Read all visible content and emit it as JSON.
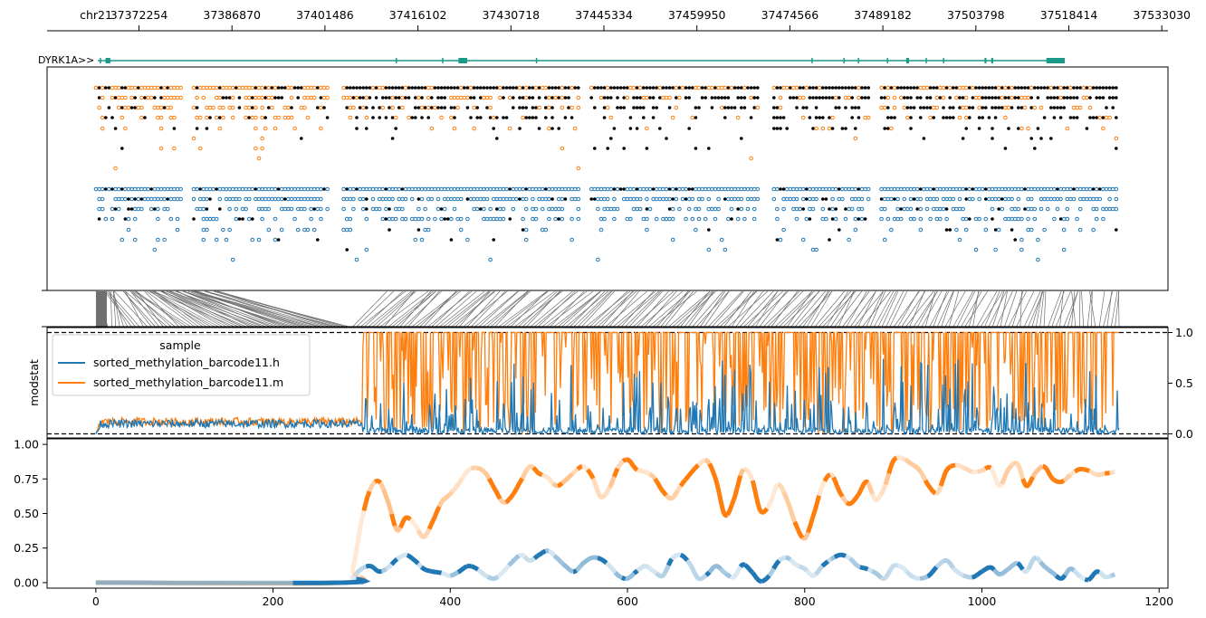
{
  "chart_data": [
    {
      "type": "line",
      "panel": "genomic coordinate ruler",
      "chrom_label": "chr21",
      "xticks": [
        "37372254",
        "37386870",
        "37401486",
        "37416102",
        "37430718",
        "37445334",
        "37459950",
        "37474566",
        "37489182",
        "37503798",
        "37518414",
        "37533030"
      ]
    },
    {
      "type": "line",
      "panel": "gene annotation",
      "gene_label": "DYRK1A>>",
      "color": "#1a9988",
      "exons_relative": [
        [
          0.002,
          0.003
        ],
        [
          0.008,
          0.013
        ],
        [
          0.308,
          0.309
        ],
        [
          0.356,
          0.357
        ],
        [
          0.373,
          0.382
        ],
        [
          0.453,
          0.454
        ],
        [
          0.738,
          0.739
        ],
        [
          0.771,
          0.772
        ],
        [
          0.786,
          0.787
        ],
        [
          0.816,
          0.817
        ],
        [
          0.836,
          0.839
        ],
        [
          0.856,
          0.857
        ],
        [
          0.874,
          0.875
        ],
        [
          0.917,
          0.919
        ],
        [
          0.924,
          0.926
        ],
        [
          0.981,
          1.0
        ]
      ]
    },
    {
      "type": "scatter",
      "panel": "per-read methylation calls",
      "colors": {
        "h": "#1f77b4",
        "m": "#ff7f0e",
        "unmodified": "#000000"
      }
    },
    {
      "type": "line",
      "panel": "genomic-to-index mapping",
      "color": "#707070"
    },
    {
      "type": "line",
      "panel": "modstat",
      "ylabel": "modstat",
      "yticks": [
        "0.0",
        "0.5",
        "1.0"
      ],
      "ylim": [
        0,
        1
      ],
      "reference_lines": [
        0,
        1
      ],
      "legend": {
        "title": "sample",
        "placement": "upper-left"
      },
      "series": [
        {
          "name": "sorted_methylation_barcode11.h",
          "color": "#1f77b4",
          "baseline": 0.1,
          "mean_after": 0.05
        },
        {
          "name": "sorted_methylation_barcode11.m",
          "color": "#ff7f0e",
          "baseline": 0.12,
          "mean_after": 0.8
        }
      ],
      "step_index": 300
    },
    {
      "type": "line",
      "panel": "smoothed methylation",
      "xlabel": "",
      "xticks": [
        "0",
        "200",
        "400",
        "600",
        "800",
        "1000",
        "1200"
      ],
      "xlim": [
        -55,
        1210
      ],
      "yticks": [
        "0.00",
        "0.25",
        "0.50",
        "0.75",
        "1.00"
      ],
      "ylim": [
        -0.04,
        1.04
      ],
      "series": [
        {
          "name": "sorted_methylation_barcode11.m",
          "color": "#ff7f0e",
          "x": [
            0,
            280,
            290,
            300,
            310,
            320,
            330,
            340,
            350,
            360,
            370,
            380,
            390,
            400,
            410,
            420,
            430,
            440,
            450,
            460,
            470,
            480,
            490,
            500,
            510,
            520,
            530,
            540,
            550,
            560,
            570,
            580,
            590,
            600,
            610,
            620,
            630,
            640,
            650,
            660,
            670,
            680,
            690,
            700,
            710,
            720,
            730,
            740,
            750,
            760,
            770,
            780,
            790,
            800,
            810,
            820,
            830,
            840,
            850,
            860,
            870,
            880,
            890,
            900,
            910,
            920,
            930,
            940,
            950,
            960,
            970,
            980,
            990,
            1000,
            1010,
            1020,
            1030,
            1040,
            1050,
            1060,
            1070,
            1080,
            1090,
            1100,
            1110,
            1120,
            1130,
            1140,
            1150
          ],
          "y": [
            0,
            0,
            0.1,
            0.45,
            0.68,
            0.73,
            0.58,
            0.38,
            0.47,
            0.42,
            0.33,
            0.44,
            0.58,
            0.64,
            0.72,
            0.81,
            0.83,
            0.79,
            0.68,
            0.58,
            0.63,
            0.74,
            0.84,
            0.79,
            0.76,
            0.7,
            0.74,
            0.8,
            0.84,
            0.77,
            0.62,
            0.69,
            0.84,
            0.89,
            0.82,
            0.8,
            0.76,
            0.66,
            0.61,
            0.7,
            0.78,
            0.85,
            0.88,
            0.74,
            0.49,
            0.6,
            0.81,
            0.76,
            0.52,
            0.56,
            0.71,
            0.6,
            0.42,
            0.32,
            0.49,
            0.7,
            0.78,
            0.65,
            0.57,
            0.63,
            0.73,
            0.6,
            0.69,
            0.88,
            0.9,
            0.86,
            0.81,
            0.7,
            0.65,
            0.81,
            0.85,
            0.83,
            0.8,
            0.81,
            0.83,
            0.7,
            0.82,
            0.86,
            0.7,
            0.79,
            0.84,
            0.75,
            0.73,
            0.78,
            0.82,
            0.81,
            0.78,
            0.79,
            0.8
          ]
        },
        {
          "name": "sorted_methylation_barcode11.h",
          "color": "#1f77b4",
          "x": [
            0,
            280,
            290,
            300,
            310,
            320,
            330,
            340,
            350,
            360,
            370,
            380,
            390,
            400,
            410,
            420,
            430,
            440,
            450,
            460,
            470,
            480,
            490,
            500,
            510,
            520,
            530,
            540,
            550,
            560,
            570,
            580,
            590,
            600,
            610,
            620,
            630,
            640,
            650,
            660,
            670,
            680,
            690,
            700,
            710,
            720,
            730,
            740,
            750,
            760,
            770,
            780,
            790,
            800,
            810,
            820,
            830,
            840,
            850,
            860,
            870,
            880,
            890,
            900,
            910,
            920,
            930,
            940,
            950,
            960,
            970,
            980,
            990,
            1000,
            1010,
            1020,
            1030,
            1040,
            1050,
            1060,
            1070,
            1080,
            1090,
            1100,
            1110,
            1120,
            1130,
            1140,
            1150
          ],
          "y": [
            0,
            0,
            0.04,
            0.1,
            0.12,
            0.08,
            0.11,
            0.17,
            0.2,
            0.16,
            0.1,
            0.08,
            0.07,
            0.05,
            0.08,
            0.12,
            0.1,
            0.05,
            0.03,
            0.08,
            0.15,
            0.2,
            0.16,
            0.2,
            0.23,
            0.18,
            0.12,
            0.08,
            0.14,
            0.18,
            0.17,
            0.12,
            0.05,
            0.03,
            0.08,
            0.12,
            0.08,
            0.05,
            0.17,
            0.2,
            0.14,
            0.03,
            0.06,
            0.12,
            0.07,
            0.04,
            0.13,
            0.08,
            0.01,
            0.05,
            0.15,
            0.18,
            0.13,
            0.1,
            0.05,
            0.12,
            0.17,
            0.2,
            0.18,
            0.12,
            0.1,
            0.07,
            0.03,
            0.12,
            0.11,
            0.05,
            0.03,
            0.05,
            0.12,
            0.16,
            0.09,
            0.05,
            0.04,
            0.08,
            0.11,
            0.06,
            0.1,
            0.14,
            0.08,
            0.18,
            0.12,
            0.07,
            0.03,
            0.1,
            0.05,
            0.02,
            0.08,
            0.04,
            0.06
          ]
        }
      ]
    }
  ]
}
